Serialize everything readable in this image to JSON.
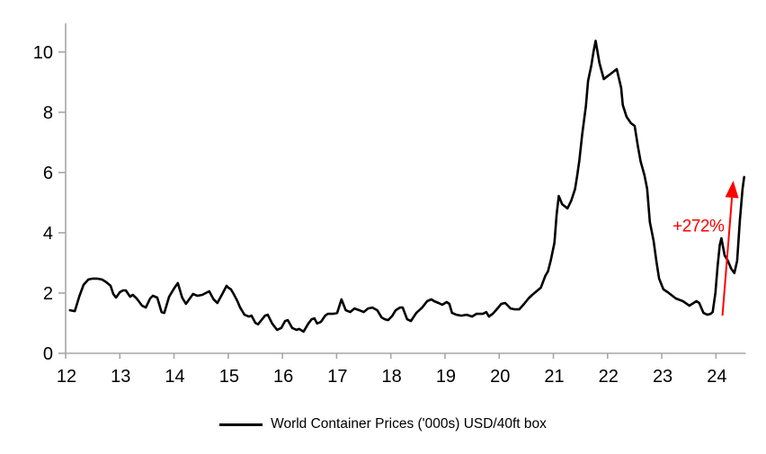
{
  "page": {
    "background": "#ffffff"
  },
  "chart_data": {
    "type": "line",
    "title": "",
    "xlabel": "",
    "ylabel": "",
    "grid": false,
    "line_color": "#000000",
    "axis_color": "#a6a6a6",
    "label_color": "#000000",
    "legend": {
      "position": "bottom",
      "marker_color": "#000000",
      "label": "World Container Prices ('000s) USD/40ft box"
    },
    "x_axis": {
      "range": [
        12,
        24.55
      ],
      "tick_labels": [
        "12",
        "13",
        "14",
        "15",
        "16",
        "17",
        "18",
        "19",
        "20",
        "21",
        "22",
        "23",
        "24"
      ],
      "ticks": [
        12,
        13,
        14,
        15,
        16,
        17,
        18,
        19,
        20,
        21,
        22,
        23,
        24
      ]
    },
    "y_axis": {
      "range": [
        0,
        10.95
      ],
      "tick_labels": [
        "0",
        "2",
        "4",
        "6",
        "8",
        "10"
      ],
      "ticks": [
        0,
        2,
        4,
        6,
        8,
        10
      ]
    },
    "series": [
      {
        "name": "World Container Prices ('000s) USD/40ft box",
        "points": [
          [
            12.08,
            1.43
          ],
          [
            12.17,
            1.4
          ],
          [
            12.25,
            1.88
          ],
          [
            12.33,
            2.27
          ],
          [
            12.42,
            2.45
          ],
          [
            12.5,
            2.48
          ],
          [
            12.58,
            2.48
          ],
          [
            12.67,
            2.45
          ],
          [
            12.75,
            2.36
          ],
          [
            12.83,
            2.24
          ],
          [
            12.88,
            1.97
          ],
          [
            12.93,
            1.85
          ],
          [
            13.0,
            2.03
          ],
          [
            13.06,
            2.09
          ],
          [
            13.11,
            2.09
          ],
          [
            13.19,
            1.88
          ],
          [
            13.24,
            1.94
          ],
          [
            13.31,
            1.82
          ],
          [
            13.41,
            1.58
          ],
          [
            13.48,
            1.52
          ],
          [
            13.56,
            1.82
          ],
          [
            13.61,
            1.91
          ],
          [
            13.69,
            1.85
          ],
          [
            13.77,
            1.37
          ],
          [
            13.82,
            1.34
          ],
          [
            13.91,
            1.88
          ],
          [
            14.0,
            2.15
          ],
          [
            14.07,
            2.33
          ],
          [
            14.15,
            1.85
          ],
          [
            14.22,
            1.64
          ],
          [
            14.35,
            1.97
          ],
          [
            14.43,
            1.91
          ],
          [
            14.52,
            1.94
          ],
          [
            14.65,
            2.06
          ],
          [
            14.73,
            1.79
          ],
          [
            14.8,
            1.67
          ],
          [
            14.9,
            2.0
          ],
          [
            14.97,
            2.24
          ],
          [
            15.0,
            2.18
          ],
          [
            15.05,
            2.12
          ],
          [
            15.1,
            1.97
          ],
          [
            15.17,
            1.73
          ],
          [
            15.22,
            1.52
          ],
          [
            15.3,
            1.28
          ],
          [
            15.38,
            1.22
          ],
          [
            15.43,
            1.25
          ],
          [
            15.5,
            1.01
          ],
          [
            15.55,
            0.96
          ],
          [
            15.6,
            1.07
          ],
          [
            15.68,
            1.25
          ],
          [
            15.73,
            1.28
          ],
          [
            15.81,
            0.99
          ],
          [
            15.9,
            0.78
          ],
          [
            15.98,
            0.84
          ],
          [
            16.05,
            1.07
          ],
          [
            16.1,
            1.1
          ],
          [
            16.18,
            0.84
          ],
          [
            16.26,
            0.78
          ],
          [
            16.31,
            0.81
          ],
          [
            16.39,
            0.72
          ],
          [
            16.48,
            0.99
          ],
          [
            16.54,
            1.13
          ],
          [
            16.59,
            1.16
          ],
          [
            16.64,
            0.99
          ],
          [
            16.71,
            1.04
          ],
          [
            16.79,
            1.25
          ],
          [
            16.84,
            1.31
          ],
          [
            16.93,
            1.31
          ],
          [
            17.01,
            1.34
          ],
          [
            17.09,
            1.79
          ],
          [
            17.17,
            1.43
          ],
          [
            17.25,
            1.37
          ],
          [
            17.33,
            1.49
          ],
          [
            17.42,
            1.43
          ],
          [
            17.5,
            1.37
          ],
          [
            17.58,
            1.49
          ],
          [
            17.66,
            1.52
          ],
          [
            17.75,
            1.43
          ],
          [
            17.83,
            1.19
          ],
          [
            17.89,
            1.13
          ],
          [
            17.95,
            1.1
          ],
          [
            18.03,
            1.25
          ],
          [
            18.09,
            1.43
          ],
          [
            18.17,
            1.52
          ],
          [
            18.22,
            1.52
          ],
          [
            18.3,
            1.13
          ],
          [
            18.37,
            1.07
          ],
          [
            18.47,
            1.34
          ],
          [
            18.58,
            1.52
          ],
          [
            18.67,
            1.73
          ],
          [
            18.75,
            1.79
          ],
          [
            18.8,
            1.73
          ],
          [
            18.88,
            1.67
          ],
          [
            18.95,
            1.61
          ],
          [
            19.03,
            1.7
          ],
          [
            19.08,
            1.64
          ],
          [
            19.13,
            1.34
          ],
          [
            19.21,
            1.28
          ],
          [
            19.3,
            1.25
          ],
          [
            19.4,
            1.28
          ],
          [
            19.5,
            1.22
          ],
          [
            19.58,
            1.31
          ],
          [
            19.7,
            1.31
          ],
          [
            19.76,
            1.37
          ],
          [
            19.81,
            1.22
          ],
          [
            19.88,
            1.31
          ],
          [
            19.94,
            1.43
          ],
          [
            20.04,
            1.64
          ],
          [
            20.11,
            1.67
          ],
          [
            20.21,
            1.49
          ],
          [
            20.29,
            1.46
          ],
          [
            20.37,
            1.46
          ],
          [
            20.46,
            1.64
          ],
          [
            20.54,
            1.82
          ],
          [
            20.61,
            1.94
          ],
          [
            20.69,
            2.06
          ],
          [
            20.77,
            2.18
          ],
          [
            20.85,
            2.57
          ],
          [
            20.9,
            2.72
          ],
          [
            20.95,
            3.07
          ],
          [
            21.02,
            3.67
          ],
          [
            21.06,
            4.6
          ],
          [
            21.1,
            5.22
          ],
          [
            21.16,
            4.95
          ],
          [
            21.26,
            4.81
          ],
          [
            21.33,
            5.07
          ],
          [
            21.4,
            5.45
          ],
          [
            21.44,
            5.9
          ],
          [
            21.48,
            6.4
          ],
          [
            21.53,
            7.25
          ],
          [
            21.6,
            8.21
          ],
          [
            21.64,
            9.04
          ],
          [
            21.7,
            9.55
          ],
          [
            21.74,
            10.0
          ],
          [
            21.78,
            10.37
          ],
          [
            21.85,
            9.64
          ],
          [
            21.93,
            9.1
          ],
          [
            22.0,
            9.2
          ],
          [
            22.06,
            9.28
          ],
          [
            22.17,
            9.43
          ],
          [
            22.25,
            8.81
          ],
          [
            22.28,
            8.24
          ],
          [
            22.35,
            7.85
          ],
          [
            22.43,
            7.64
          ],
          [
            22.5,
            7.55
          ],
          [
            22.56,
            6.87
          ],
          [
            22.61,
            6.36
          ],
          [
            22.68,
            5.91
          ],
          [
            22.73,
            5.46
          ],
          [
            22.78,
            4.36
          ],
          [
            22.85,
            3.73
          ],
          [
            22.9,
            3.07
          ],
          [
            22.95,
            2.48
          ],
          [
            23.03,
            2.12
          ],
          [
            23.11,
            2.03
          ],
          [
            23.26,
            1.82
          ],
          [
            23.39,
            1.73
          ],
          [
            23.51,
            1.58
          ],
          [
            23.64,
            1.73
          ],
          [
            23.69,
            1.67
          ],
          [
            23.77,
            1.34
          ],
          [
            23.84,
            1.28
          ],
          [
            23.9,
            1.31
          ],
          [
            23.94,
            1.37
          ],
          [
            23.99,
            2.0
          ],
          [
            24.03,
            2.9
          ],
          [
            24.07,
            3.6
          ],
          [
            24.1,
            3.82
          ],
          [
            24.16,
            3.25
          ],
          [
            24.22,
            3.07
          ],
          [
            24.28,
            2.81
          ],
          [
            24.34,
            2.66
          ],
          [
            24.39,
            3.07
          ],
          [
            24.44,
            4.4
          ],
          [
            24.49,
            5.45
          ],
          [
            24.52,
            5.85
          ]
        ]
      }
    ],
    "annotation": {
      "label": "+272%",
      "color": "#ff0000",
      "text_x": 24.15,
      "text_y": 4.04,
      "arrow_from_x": 24.12,
      "arrow_from_y": 1.25,
      "arrow_to_x": 24.32,
      "arrow_to_y": 5.73
    }
  }
}
